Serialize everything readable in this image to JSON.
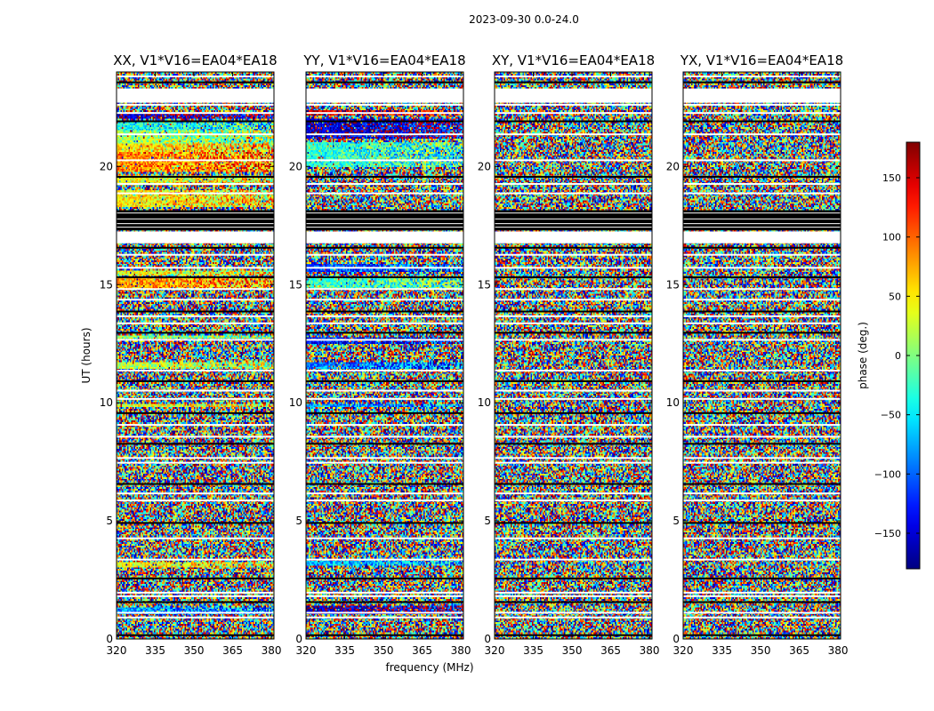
{
  "suptitle": "2023-09-30 0.0-24.0",
  "chart_data": {
    "type": "heatmap",
    "panels": [
      {
        "title": "XX, V1*V16=EA04*EA18"
      },
      {
        "title": "YY, V1*V16=EA04*EA18"
      },
      {
        "title": "XY, V1*V16=EA04*EA18"
      },
      {
        "title": "YX, V1*V16=EA04*EA18"
      }
    ],
    "xlabel": "frequency (MHz)",
    "ylabel": "UT (hours)",
    "xlim": [
      320,
      381
    ],
    "ylim": [
      0,
      24
    ],
    "x_ticks": [
      "320",
      "335",
      "350",
      "365",
      "380"
    ],
    "y_ticks": [
      "0",
      "5",
      "10",
      "15",
      "20"
    ],
    "x_tick_values": [
      320,
      335,
      350,
      365,
      380
    ],
    "y_tick_values": [
      0,
      5,
      10,
      15,
      20
    ],
    "colorbar": {
      "label": "phase (deg.)",
      "range": [
        -180,
        180
      ],
      "ticks": [
        "150",
        "100",
        "50",
        "0",
        "−50",
        "−100",
        "−150"
      ],
      "tick_values": [
        150,
        100,
        50,
        0,
        -50,
        -100,
        -150
      ],
      "colormap": "jet"
    },
    "flagged_rows_ut": [
      0.2,
      0.95,
      1.15,
      1.6,
      1.85,
      2.0,
      2.6,
      3.4,
      4.3,
      4.95,
      5.9,
      6.2,
      6.6,
      7.5,
      7.7,
      8.3,
      8.6,
      9.1,
      9.6,
      10.2,
      10.55,
      10.95,
      11.4,
      12.7,
      13.0,
      13.4,
      13.7,
      13.9,
      14.4,
      14.85,
      15.35,
      15.75,
      16.3,
      16.6,
      18.9,
      19.3,
      19.6,
      20.3,
      21.4,
      21.95,
      22.3,
      22.65,
      23.6,
      23.85
    ],
    "blank_bands_ut": [
      [
        16.75,
        17.25
      ],
      [
        22.7,
        23.3
      ]
    ],
    "dark_bands_ut": [
      [
        17.3,
        18.15
      ],
      [
        17.9,
        18.0
      ]
    ],
    "features": [
      {
        "panel": 0,
        "ut": [
          1.05,
          1.35
        ],
        "phase": -80
      },
      {
        "panel": 0,
        "ut": [
          3.05,
          3.25
        ],
        "phase": 45
      },
      {
        "panel": 0,
        "ut": [
          9.8,
          9.95
        ],
        "phase": 40
      },
      {
        "panel": 0,
        "ut": [
          11.45,
          11.7
        ],
        "phase": 20
      },
      {
        "panel": 0,
        "ut": [
          12.7,
          12.85
        ],
        "phase": 10
      },
      {
        "panel": 0,
        "ut": [
          14.8,
          15.35
        ],
        "phase": 80
      },
      {
        "panel": 0,
        "ut": [
          15.4,
          15.6
        ],
        "phase": 40
      },
      {
        "panel": 0,
        "ut": [
          18.3,
          19.0
        ],
        "phase": 50
      },
      {
        "panel": 0,
        "ut": [
          19.2,
          19.6
        ],
        "phase": 40
      },
      {
        "panel": 0,
        "ut": [
          19.8,
          20.6
        ],
        "phase": 90
      },
      {
        "panel": 0,
        "ut": [
          20.6,
          21.0
        ],
        "phase": 55
      },
      {
        "panel": 0,
        "ut": [
          21.0,
          21.5
        ],
        "phase": 10
      },
      {
        "panel": 0,
        "ut": [
          21.5,
          21.9
        ],
        "phase": -40
      },
      {
        "panel": 0,
        "ut": [
          22.0,
          22.2
        ],
        "phase": -160
      },
      {
        "panel": 1,
        "ut": [
          1.05,
          1.4
        ],
        "phase": -160
      },
      {
        "panel": 1,
        "ut": [
          3.1,
          3.3
        ],
        "phase": -70
      },
      {
        "panel": 1,
        "ut": [
          9.8,
          9.95
        ],
        "phase": -80
      },
      {
        "panel": 1,
        "ut": [
          11.45,
          11.7
        ],
        "phase": -90
      },
      {
        "panel": 1,
        "ut": [
          12.5,
          12.75
        ],
        "phase": -130
      },
      {
        "panel": 1,
        "ut": [
          14.8,
          15.3
        ],
        "phase": -20
      },
      {
        "panel": 1,
        "ut": [
          15.5,
          15.9
        ],
        "phase": -110
      },
      {
        "panel": 1,
        "ut": [
          20.0,
          21.0
        ],
        "phase": -30
      },
      {
        "panel": 1,
        "ut": [
          21.2,
          22.0
        ],
        "phase": -150
      },
      {
        "panel": 1,
        "ut": [
          22.2,
          22.4
        ],
        "phase": 150
      }
    ]
  }
}
